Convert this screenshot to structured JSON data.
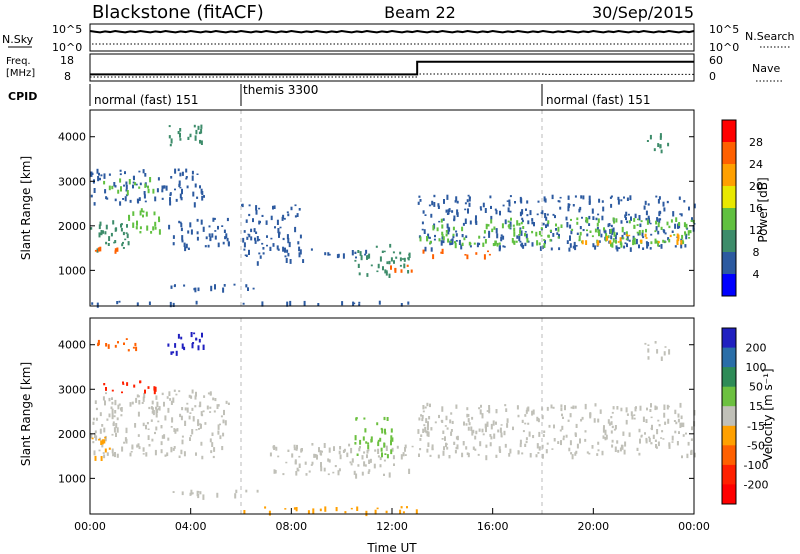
{
  "header": {
    "station": "Blackstone (fitACF)",
    "beam": "Beam 22",
    "date": "30/Sep/2015"
  },
  "status_panel": {
    "nsky_label": "N.Sky",
    "nsky_ticks": [
      "10^5",
      "10^0"
    ],
    "nsearch_label": "N.Search",
    "freq_label_top": "Freq.",
    "freq_label_unit": "[MHz]",
    "freq_ticks": [
      "18",
      "8"
    ],
    "nave_label": "Nave",
    "nave_ticks": [
      "60",
      "0"
    ],
    "cpid_label": "CPID",
    "cpid_segments": [
      {
        "label": "normal (fast) 151",
        "start_h": 0,
        "end_h": 6
      },
      {
        "label": "themis 3300",
        "start_h": 6,
        "end_h": 18
      },
      {
        "label": "normal (fast) 151",
        "start_h": 18,
        "end_h": 24
      }
    ],
    "freq_series": {
      "name": "Freq.",
      "x": [
        0,
        13,
        13,
        24
      ],
      "y": [
        10,
        10,
        17,
        17
      ]
    },
    "nave_series": {
      "name": "Nave",
      "x": [
        0,
        13,
        13,
        18,
        18,
        24
      ],
      "y": [
        3,
        3,
        12,
        12,
        11,
        11
      ]
    }
  },
  "chart_data": [
    {
      "type": "heatmap",
      "name": "power",
      "xlabel": "",
      "ylabel": "Slant Range [km]",
      "xlim": [
        0,
        24
      ],
      "ylim": [
        200,
        4600
      ],
      "yticks": [
        "1000",
        "2000",
        "3000",
        "4000"
      ],
      "colorbar_label": "Power [dB]",
      "colorbar_ticks": [
        "28",
        "24",
        "20",
        "16",
        "12",
        "8",
        "4"
      ],
      "colorbar_colors": [
        "#ff0000",
        "#ff6000",
        "#ffa000",
        "#e8e800",
        "#60c040",
        "#3d8c6a",
        "#2c5aa0",
        "#0000ff"
      ],
      "regions": [
        {
          "x0": 0,
          "x1": 1.5,
          "y0": 1400,
          "y1": 2200,
          "color": "#3d8c6a"
        },
        {
          "x0": 0.1,
          "x1": 1.2,
          "y0": 1450,
          "y1": 1600,
          "color": "#ff6000"
        },
        {
          "x0": 1.5,
          "x1": 3,
          "y0": 1800,
          "y1": 2400,
          "color": "#60c040"
        },
        {
          "x0": 3,
          "x1": 5.5,
          "y0": 1500,
          "y1": 2200,
          "color": "#2c5aa0"
        },
        {
          "x0": 0,
          "x1": 4.5,
          "y0": 2500,
          "y1": 3300,
          "color": "#2c5aa0"
        },
        {
          "x0": 0.5,
          "x1": 2.5,
          "y0": 2800,
          "y1": 3100,
          "color": "#60c040"
        },
        {
          "x0": 3,
          "x1": 4.5,
          "y0": 3800,
          "y1": 4300,
          "color": "#3d8c6a"
        },
        {
          "x0": 6,
          "x1": 8.5,
          "y0": 1200,
          "y1": 2500,
          "color": "#2c5aa0"
        },
        {
          "x0": 8.5,
          "x1": 11,
          "y0": 1300,
          "y1": 1500,
          "color": "#2c5aa0"
        },
        {
          "x0": 10.5,
          "x1": 12.8,
          "y0": 900,
          "y1": 1600,
          "color": "#3d8c6a"
        },
        {
          "x0": 11.8,
          "x1": 12.8,
          "y0": 1000,
          "y1": 1200,
          "color": "#ff6000"
        },
        {
          "x0": 3,
          "x1": 7,
          "y0": 600,
          "y1": 750,
          "color": "#2c5aa0"
        },
        {
          "x0": 0,
          "x1": 13,
          "y0": 250,
          "y1": 320,
          "color": "#2c5aa0"
        },
        {
          "x0": 13,
          "x1": 24,
          "y0": 1500,
          "y1": 2700,
          "color": "#2c5aa0"
        },
        {
          "x0": 13,
          "x1": 24,
          "y0": 1600,
          "y1": 2200,
          "color": "#60c040"
        },
        {
          "x0": 13.2,
          "x1": 16,
          "y0": 1350,
          "y1": 1500,
          "color": "#ff6000"
        },
        {
          "x0": 19,
          "x1": 23.5,
          "y0": 1650,
          "y1": 1850,
          "color": "#ffa000"
        },
        {
          "x0": 22,
          "x1": 23,
          "y0": 3700,
          "y1": 4100,
          "color": "#3d8c6a"
        }
      ]
    },
    {
      "type": "heatmap",
      "name": "velocity",
      "xlabel": "Time UT",
      "ylabel": "Slant Range [km]",
      "xlim": [
        0,
        24
      ],
      "ylim": [
        200,
        4600
      ],
      "yticks": [
        "1000",
        "2000",
        "3000",
        "4000"
      ],
      "xticks": [
        "00:00",
        "04:00",
        "08:00",
        "12:00",
        "16:00",
        "20:00",
        "00:00"
      ],
      "colorbar_label": "Velocity [m s⁻¹]",
      "colorbar_ticks": [
        "200",
        "100",
        "50",
        "15",
        "-15",
        "-50",
        "-100",
        "-200"
      ],
      "colorbar_colors": [
        "#2020c0",
        "#2a6ea8",
        "#2e8b57",
        "#6cc040",
        "#c0c0b8",
        "#ffa000",
        "#ff6000",
        "#ff2000",
        "#ff0000"
      ],
      "regions": [
        {
          "x0": 0,
          "x1": 5.5,
          "y0": 1500,
          "y1": 3000,
          "color": "#c0c0b8"
        },
        {
          "x0": 0.2,
          "x1": 2.6,
          "y0": 2950,
          "y1": 3200,
          "color": "#ff2000"
        },
        {
          "x0": 0,
          "x1": 0.8,
          "y0": 1500,
          "y1": 2000,
          "color": "#ffa000"
        },
        {
          "x0": 3,
          "x1": 4.6,
          "y0": 3800,
          "y1": 4300,
          "color": "#2020c0"
        },
        {
          "x0": 0.2,
          "x1": 1.8,
          "y0": 3900,
          "y1": 4200,
          "color": "#ff6000"
        },
        {
          "x0": 7,
          "x1": 12.8,
          "y0": 1100,
          "y1": 1800,
          "color": "#c0c0b8"
        },
        {
          "x0": 10.5,
          "x1": 12,
          "y0": 1500,
          "y1": 2400,
          "color": "#6cc040"
        },
        {
          "x0": 6,
          "x1": 13,
          "y0": 250,
          "y1": 380,
          "color": "#ffa000"
        },
        {
          "x0": 3,
          "x1": 7,
          "y0": 600,
          "y1": 750,
          "color": "#c0c0b8"
        },
        {
          "x0": 13,
          "x1": 24,
          "y0": 1500,
          "y1": 2700,
          "color": "#c0c0b8"
        },
        {
          "x0": 22,
          "x1": 23,
          "y0": 3700,
          "y1": 4100,
          "color": "#c0c0b8"
        }
      ]
    }
  ]
}
